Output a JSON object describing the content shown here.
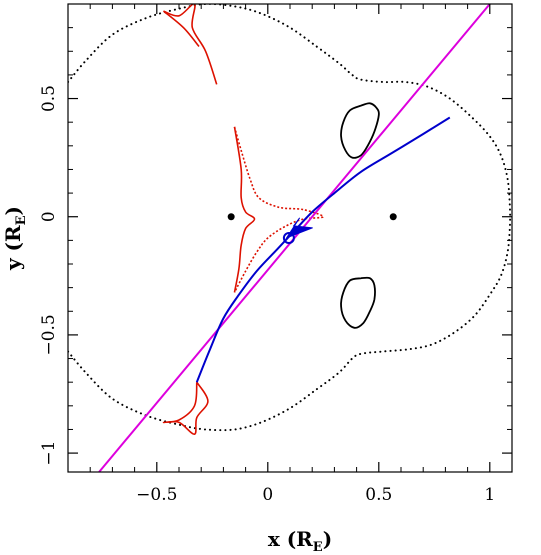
{
  "chart_data": {
    "type": "line",
    "xlabel": "x (R",
    "xlabel_sub": "E",
    "xlabel_close": ")",
    "ylabel": "y (R",
    "ylabel_sub": "E",
    "ylabel_close": ")",
    "xlim": [
      -0.9,
      1.1
    ],
    "ylim": [
      -1.08,
      0.9
    ],
    "xticks": [
      -0.5,
      0,
      0.5,
      1
    ],
    "xtick_labels": [
      "−0.5",
      "0",
      "0.5",
      "1"
    ],
    "yticks": [
      -1,
      -0.5,
      0,
      0.5
    ],
    "ytick_labels": [
      "−1",
      "−0.5",
      "0",
      "0.5"
    ],
    "grid": false,
    "colors": {
      "critical_curve": "#000000",
      "caustic": "#dd1100",
      "trajectory": "#0000cc",
      "straight_line": "#dd00dd"
    },
    "lens_positions": [
      {
        "x": -0.165,
        "y": 0
      },
      {
        "x": 0.565,
        "y": 0
      }
    ],
    "outer_critical_curve": [
      [
        -0.9,
        0.57
      ],
      [
        -0.82,
        0.66
      ],
      [
        -0.7,
        0.77
      ],
      [
        -0.55,
        0.84
      ],
      [
        -0.4,
        0.88
      ],
      [
        -0.28,
        0.9
      ],
      [
        -0.15,
        0.89
      ],
      [
        -0.03,
        0.86
      ],
      [
        0.1,
        0.8
      ],
      [
        0.22,
        0.72
      ],
      [
        0.32,
        0.65
      ],
      [
        0.38,
        0.6
      ],
      [
        0.42,
        0.58
      ],
      [
        0.52,
        0.57
      ],
      [
        0.62,
        0.57
      ],
      [
        0.72,
        0.55
      ],
      [
        0.82,
        0.5
      ],
      [
        0.92,
        0.42
      ],
      [
        1.0,
        0.34
      ],
      [
        1.05,
        0.26
      ],
      [
        1.08,
        0.16
      ],
      [
        1.09,
        0.05
      ],
      [
        1.09,
        -0.05
      ],
      [
        1.08,
        -0.15
      ],
      [
        1.05,
        -0.25
      ],
      [
        1.0,
        -0.33
      ],
      [
        0.93,
        -0.42
      ],
      [
        0.84,
        -0.49
      ],
      [
        0.74,
        -0.54
      ],
      [
        0.64,
        -0.56
      ],
      [
        0.52,
        -0.57
      ],
      [
        0.42,
        -0.58
      ],
      [
        0.38,
        -0.6
      ],
      [
        0.32,
        -0.66
      ],
      [
        0.22,
        -0.73
      ],
      [
        0.1,
        -0.81
      ],
      [
        -0.03,
        -0.87
      ],
      [
        -0.15,
        -0.9
      ],
      [
        -0.28,
        -0.9
      ],
      [
        -0.4,
        -0.88
      ],
      [
        -0.55,
        -0.84
      ],
      [
        -0.7,
        -0.77
      ],
      [
        -0.82,
        -0.66
      ],
      [
        -0.9,
        -0.57
      ]
    ],
    "inner_critical_upper": [
      [
        0.42,
        0.47
      ],
      [
        0.37,
        0.45
      ],
      [
        0.34,
        0.4
      ],
      [
        0.33,
        0.34
      ],
      [
        0.35,
        0.28
      ],
      [
        0.38,
        0.25
      ],
      [
        0.42,
        0.26
      ],
      [
        0.45,
        0.3
      ],
      [
        0.48,
        0.36
      ],
      [
        0.5,
        0.43
      ],
      [
        0.49,
        0.46
      ],
      [
        0.46,
        0.48
      ],
      [
        0.42,
        0.47
      ]
    ],
    "inner_critical_lower": [
      [
        0.42,
        -0.26
      ],
      [
        0.37,
        -0.27
      ],
      [
        0.34,
        -0.32
      ],
      [
        0.33,
        -0.38
      ],
      [
        0.35,
        -0.44
      ],
      [
        0.39,
        -0.47
      ],
      [
        0.43,
        -0.45
      ],
      [
        0.46,
        -0.4
      ],
      [
        0.48,
        -0.35
      ],
      [
        0.48,
        -0.29
      ],
      [
        0.46,
        -0.26
      ],
      [
        0.42,
        -0.26
      ]
    ],
    "caustic_top": [
      [
        -0.47,
        0.87
      ],
      [
        -0.4,
        0.85
      ],
      [
        -0.33,
        0.9
      ],
      [
        -0.34,
        0.8
      ],
      [
        -0.28,
        0.7
      ],
      [
        -0.23,
        0.56
      ]
    ],
    "caustic_top_edge": [
      [
        -0.47,
        0.87
      ],
      [
        -0.38,
        0.8
      ],
      [
        -0.31,
        0.72
      ]
    ],
    "caustic_central": [
      [
        -0.15,
        0.38
      ],
      [
        -0.12,
        0.28
      ],
      [
        -0.08,
        0.16
      ],
      [
        -0.04,
        0.08
      ],
      [
        0.05,
        0.04
      ],
      [
        0.16,
        0.03
      ],
      [
        0.25,
        0.0
      ],
      [
        0.16,
        -0.01
      ],
      [
        0.08,
        -0.04
      ],
      [
        0.0,
        -0.09
      ],
      [
        -0.05,
        -0.15
      ],
      [
        -0.1,
        -0.23
      ],
      [
        -0.15,
        -0.32
      ]
    ],
    "caustic_central_left": [
      [
        -0.15,
        0.38
      ],
      [
        -0.12,
        0.2
      ],
      [
        -0.12,
        0.08
      ],
      [
        -0.1,
        0.02
      ],
      [
        -0.06,
        -0.01
      ],
      [
        -0.1,
        -0.05
      ],
      [
        -0.12,
        -0.12
      ],
      [
        -0.13,
        -0.22
      ],
      [
        -0.15,
        -0.32
      ]
    ],
    "caustic_bottom": [
      [
        -0.32,
        -0.7
      ],
      [
        -0.33,
        -0.8
      ],
      [
        -0.4,
        -0.86
      ],
      [
        -0.47,
        -0.87
      ],
      [
        -0.4,
        -0.87
      ],
      [
        -0.33,
        -0.92
      ],
      [
        -0.32,
        -0.85
      ],
      [
        -0.27,
        -0.78
      ],
      [
        -0.32,
        -0.7
      ]
    ],
    "trajectory_curve": [
      [
        -0.32,
        -0.7
      ],
      [
        -0.26,
        -0.56
      ],
      [
        -0.2,
        -0.43
      ],
      [
        -0.13,
        -0.33
      ],
      [
        -0.05,
        -0.23
      ],
      [
        0.04,
        -0.14
      ],
      [
        0.12,
        -0.06
      ],
      [
        0.2,
        0.02
      ],
      [
        0.3,
        0.1
      ],
      [
        0.42,
        0.19
      ],
      [
        0.56,
        0.27
      ],
      [
        0.7,
        0.35
      ],
      [
        0.82,
        0.42
      ]
    ],
    "source_point": {
      "x": 0.095,
      "y": -0.09
    },
    "arrow_head": {
      "x": 0.13,
      "y": -0.03,
      "direction": "down-left"
    },
    "straight_line": [
      [
        -0.76,
        -1.08
      ],
      [
        1.0,
        0.9
      ]
    ]
  }
}
